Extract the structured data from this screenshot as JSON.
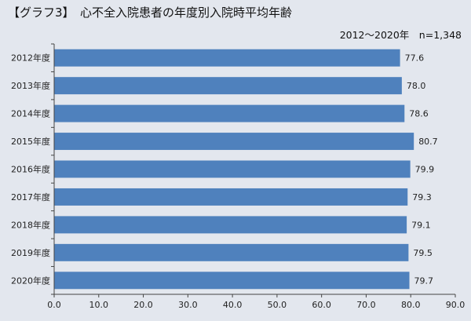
{
  "chart_data": {
    "type": "bar",
    "orientation": "horizontal",
    "title": "【グラフ3】　心不全入院患者の年度別入院時平均年齢",
    "subtitle": "2012～2020年　n=1,348",
    "categories": [
      "2012年度",
      "2013年度",
      "2014年度",
      "2015年度",
      "2016年度",
      "2017年度",
      "2018年度",
      "2019年度",
      "2020年度"
    ],
    "values": [
      77.6,
      78.0,
      78.6,
      80.7,
      79.9,
      79.3,
      79.1,
      79.5,
      79.7
    ],
    "value_labels": [
      "77.6",
      "78.0",
      "78.6",
      "80.7",
      "79.9",
      "79.3",
      "79.1",
      "79.5",
      "79.7"
    ],
    "xlim": [
      0,
      90
    ],
    "xticks": [
      0,
      10,
      20,
      30,
      40,
      50,
      60,
      70,
      80,
      90
    ],
    "xtick_labels": [
      "0.0",
      "10.0",
      "20.0",
      "30.0",
      "40.0",
      "50.0",
      "60.0",
      "70.0",
      "80.0",
      "90.0"
    ],
    "xlabel": "",
    "ylabel": "",
    "grid": false,
    "bar_color": "#4f81bd",
    "background_color": "#e3e7ee"
  }
}
